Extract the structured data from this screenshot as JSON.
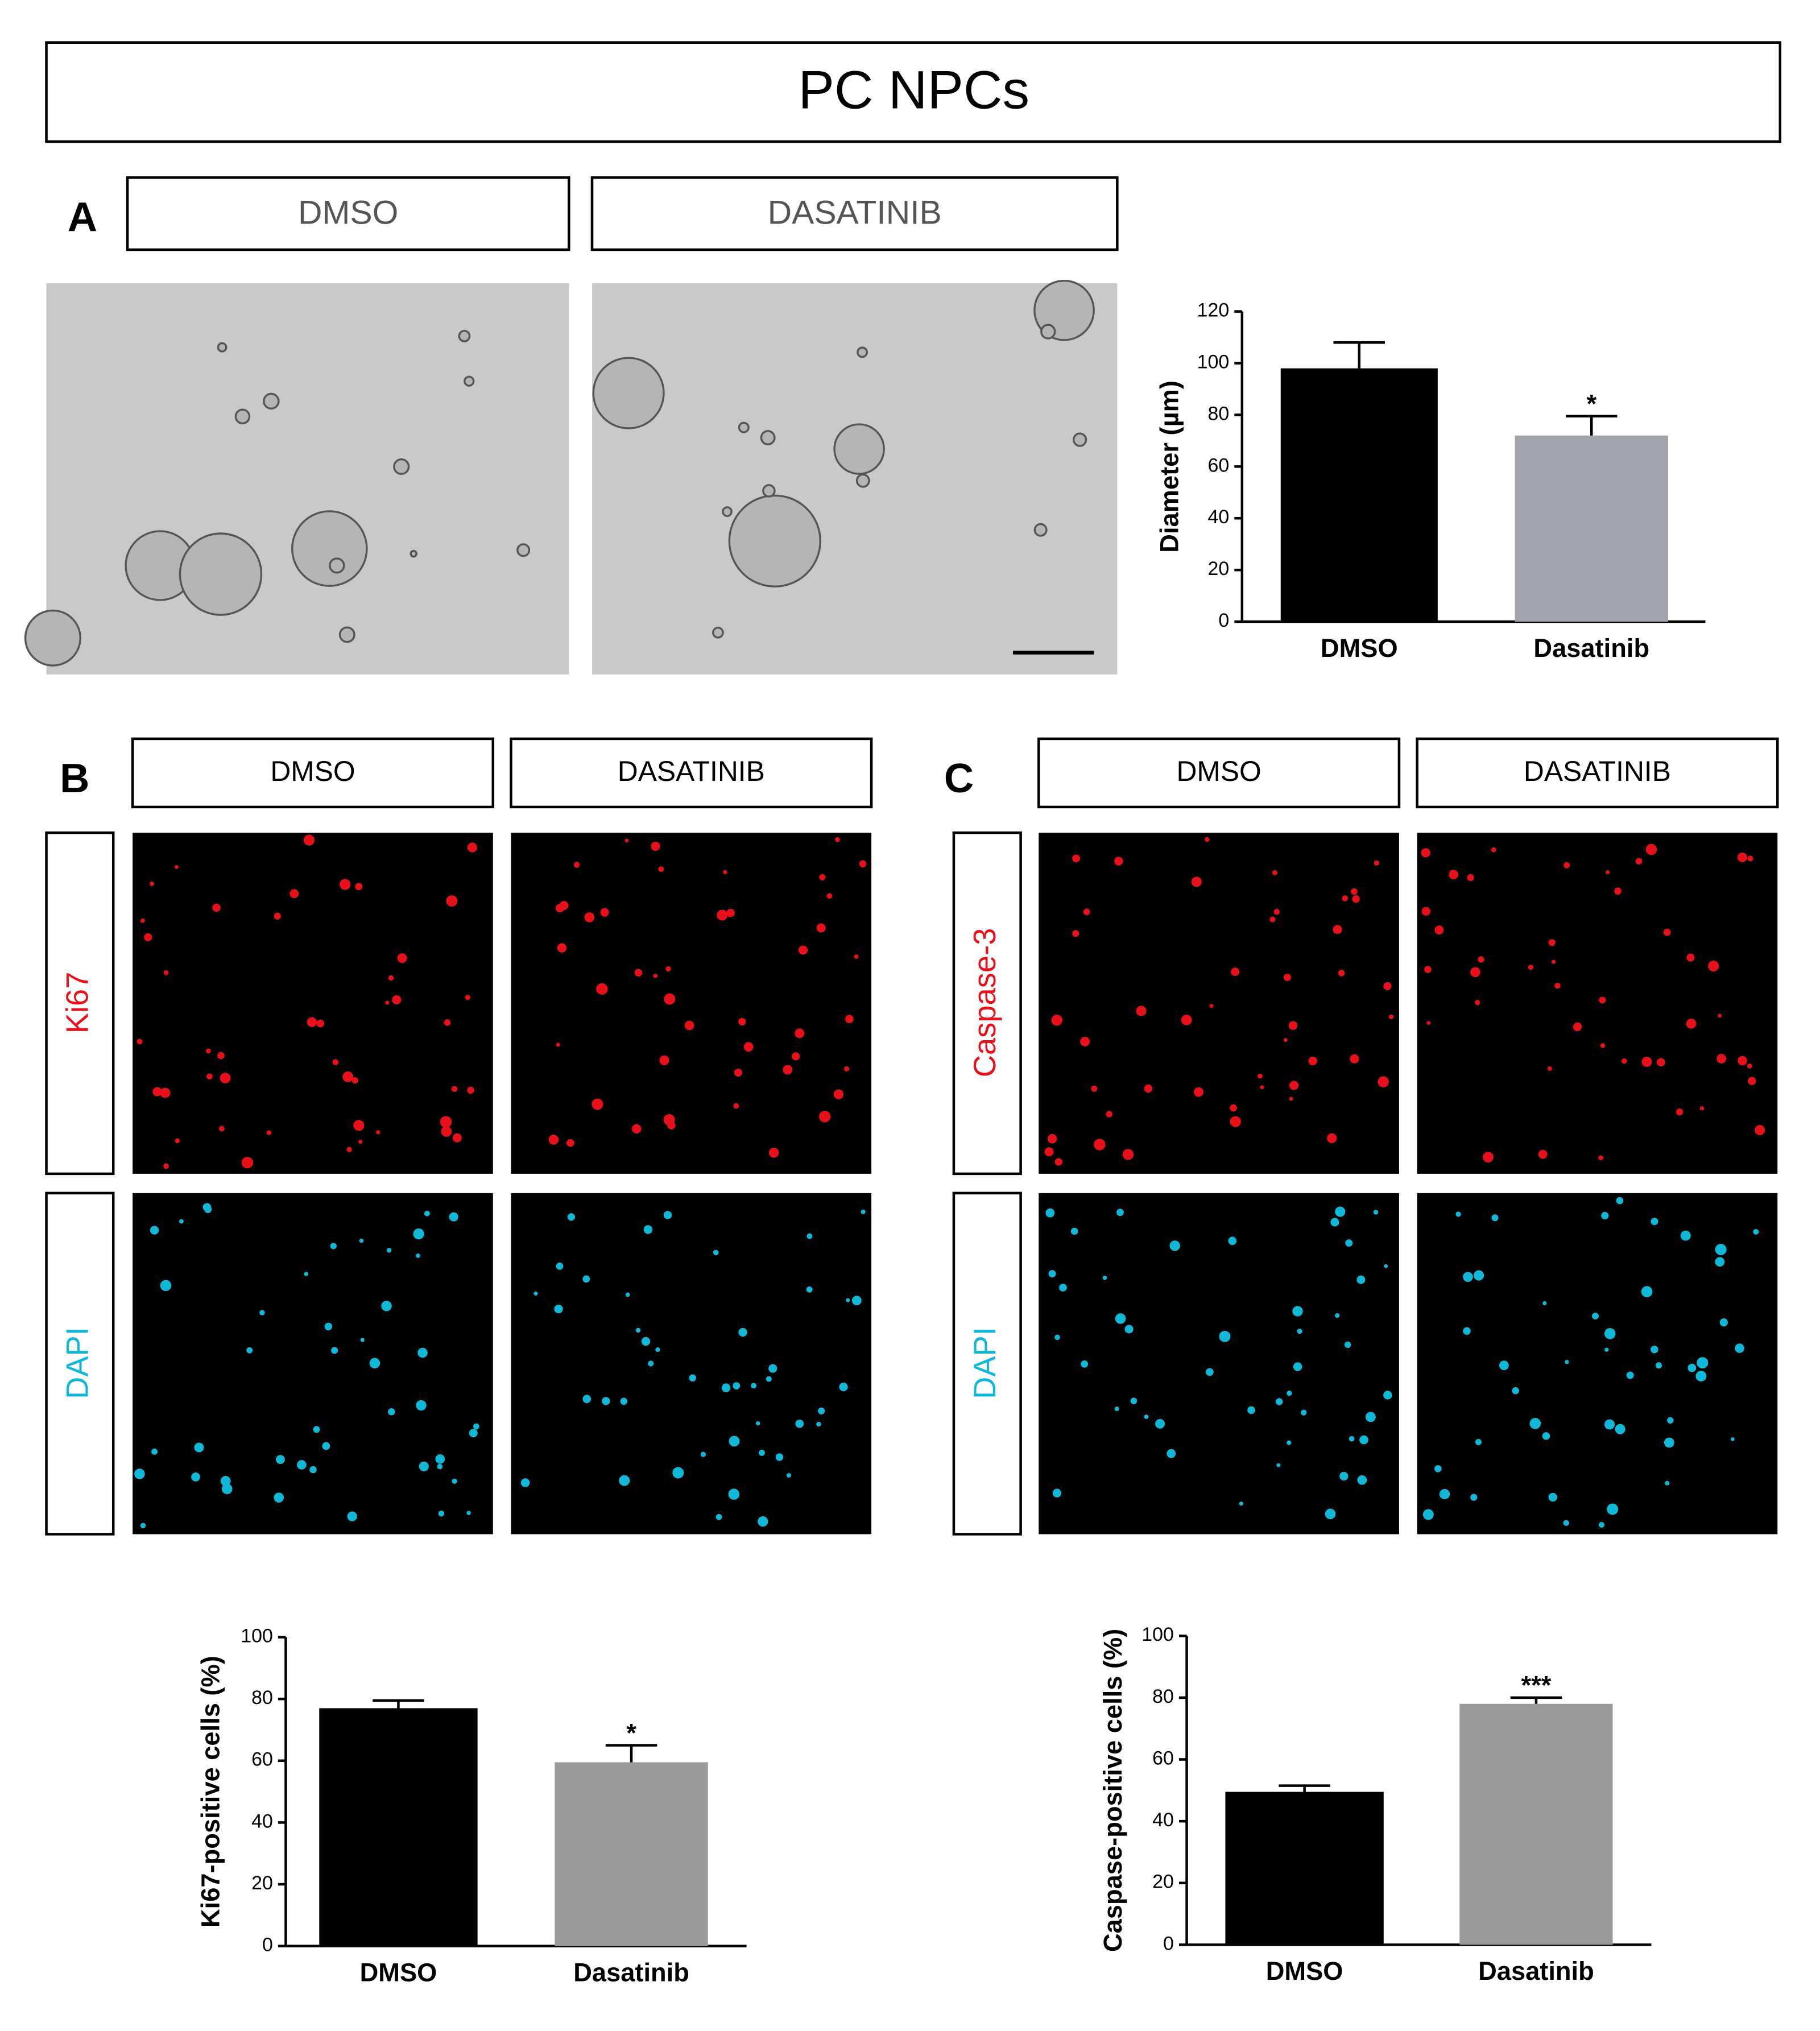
{
  "header": {
    "title": "PC NPCs"
  },
  "panels": [
    {
      "label": "A",
      "columns": [
        "DMSO",
        "DASATINIB"
      ]
    },
    {
      "label": "B",
      "columns": [
        "DMSO",
        "DASATINIB"
      ],
      "rows": [
        "Ki67",
        "DAPI"
      ],
      "row_colors": [
        "#e8101a",
        "#10b8d8"
      ]
    },
    {
      "label": "C",
      "columns": [
        "DMSO",
        "DASATINIB"
      ],
      "rows": [
        "Caspase-3",
        "DAPI"
      ],
      "row_colors": [
        "#e8101a",
        "#10b8d8"
      ]
    }
  ],
  "chart_data": [
    {
      "type": "bar",
      "y_label": "Diameter (µm)",
      "categories": [
        "DMSO",
        "Dasatinib"
      ],
      "values": [
        98,
        72
      ],
      "errors": [
        10,
        7.5
      ],
      "colors": [
        "#000000",
        "#a3a3ab"
      ],
      "ylim": [
        0,
        120
      ],
      "yticks": [
        0,
        20,
        40,
        60,
        80,
        100,
        120
      ],
      "annotations": [
        {
          "x": "Dasatinib",
          "text": "*"
        }
      ]
    },
    {
      "type": "bar",
      "y_label": "Ki67-positive cells  (%)",
      "categories": [
        "DMSO",
        "Dasatinib"
      ],
      "values": [
        77,
        59.5
      ],
      "errors": [
        2.5,
        5.5
      ],
      "colors": [
        "#000000",
        "#9b9b9b"
      ],
      "ylim": [
        0,
        100
      ],
      "yticks": [
        0,
        20,
        40,
        60,
        80,
        100
      ],
      "annotations": [
        {
          "x": "Dasatinib",
          "text": "*"
        }
      ]
    },
    {
      "type": "bar",
      "y_label": "Caspase-positive cells  (%)",
      "categories": [
        "DMSO",
        "Dasatinib"
      ],
      "values": [
        49.5,
        78
      ],
      "errors": [
        2,
        2
      ],
      "colors": [
        "#000000",
        "#9b9b9b"
      ],
      "ylim": [
        0,
        100
      ],
      "yticks": [
        0,
        20,
        40,
        60,
        80,
        100
      ],
      "annotations": [
        {
          "x": "Dasatinib",
          "text": "***"
        }
      ]
    }
  ]
}
